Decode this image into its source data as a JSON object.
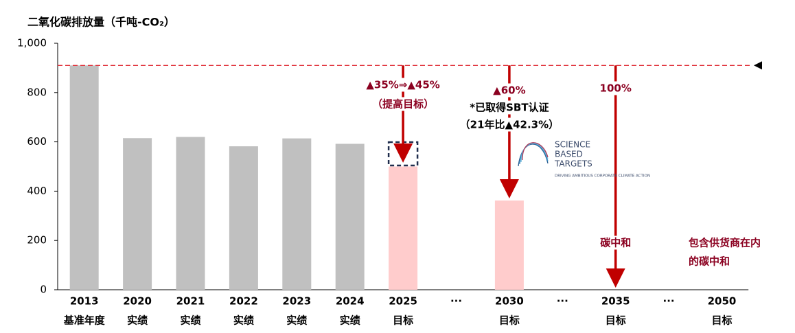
{
  "chart_data": {
    "type": "bar",
    "title": "二氧化碳排放量（千吨-CO₂）",
    "categories": [
      "2013",
      "2020",
      "2021",
      "2022",
      "2023",
      "2024",
      "2025",
      "···",
      "2030",
      "···",
      "2035",
      "···",
      "2050"
    ],
    "sublabels": [
      "基准年度",
      "实绩",
      "实绩",
      "实绩",
      "实绩",
      "实绩",
      "目标",
      null,
      "目标",
      null,
      "目标",
      null,
      "目标"
    ],
    "values": [
      910,
      615,
      620,
      582,
      614,
      592,
      500,
      null,
      362,
      null,
      null,
      null,
      null
    ],
    "colors": [
      "#c0c0c0",
      "#c0c0c0",
      "#c0c0c0",
      "#c0c0c0",
      "#c0c0c0",
      "#c0c0c0",
      "#ffcccc",
      null,
      "#ffcccc",
      null,
      null,
      null,
      null
    ],
    "ylim": [
      0,
      1000
    ],
    "yticks": [
      0,
      200,
      400,
      600,
      800,
      {
        "value": 1000,
        "label": "1,000"
      }
    ],
    "reference_line": 910,
    "grid": false,
    "annotations": [
      "▲35%⇒▲45%",
      "（提高目标）",
      "▲60%",
      "*已取得SBT认证",
      "（21年比▲42.3%）",
      "100%",
      "碳中和",
      "包含供货商在内",
      "的碳中和"
    ],
    "logo": [
      "SCIENCE",
      "BASED",
      "TARGETS",
      "DRIVING AMBITIOUS CORPORATE CLIMATE ACTION"
    ]
  }
}
